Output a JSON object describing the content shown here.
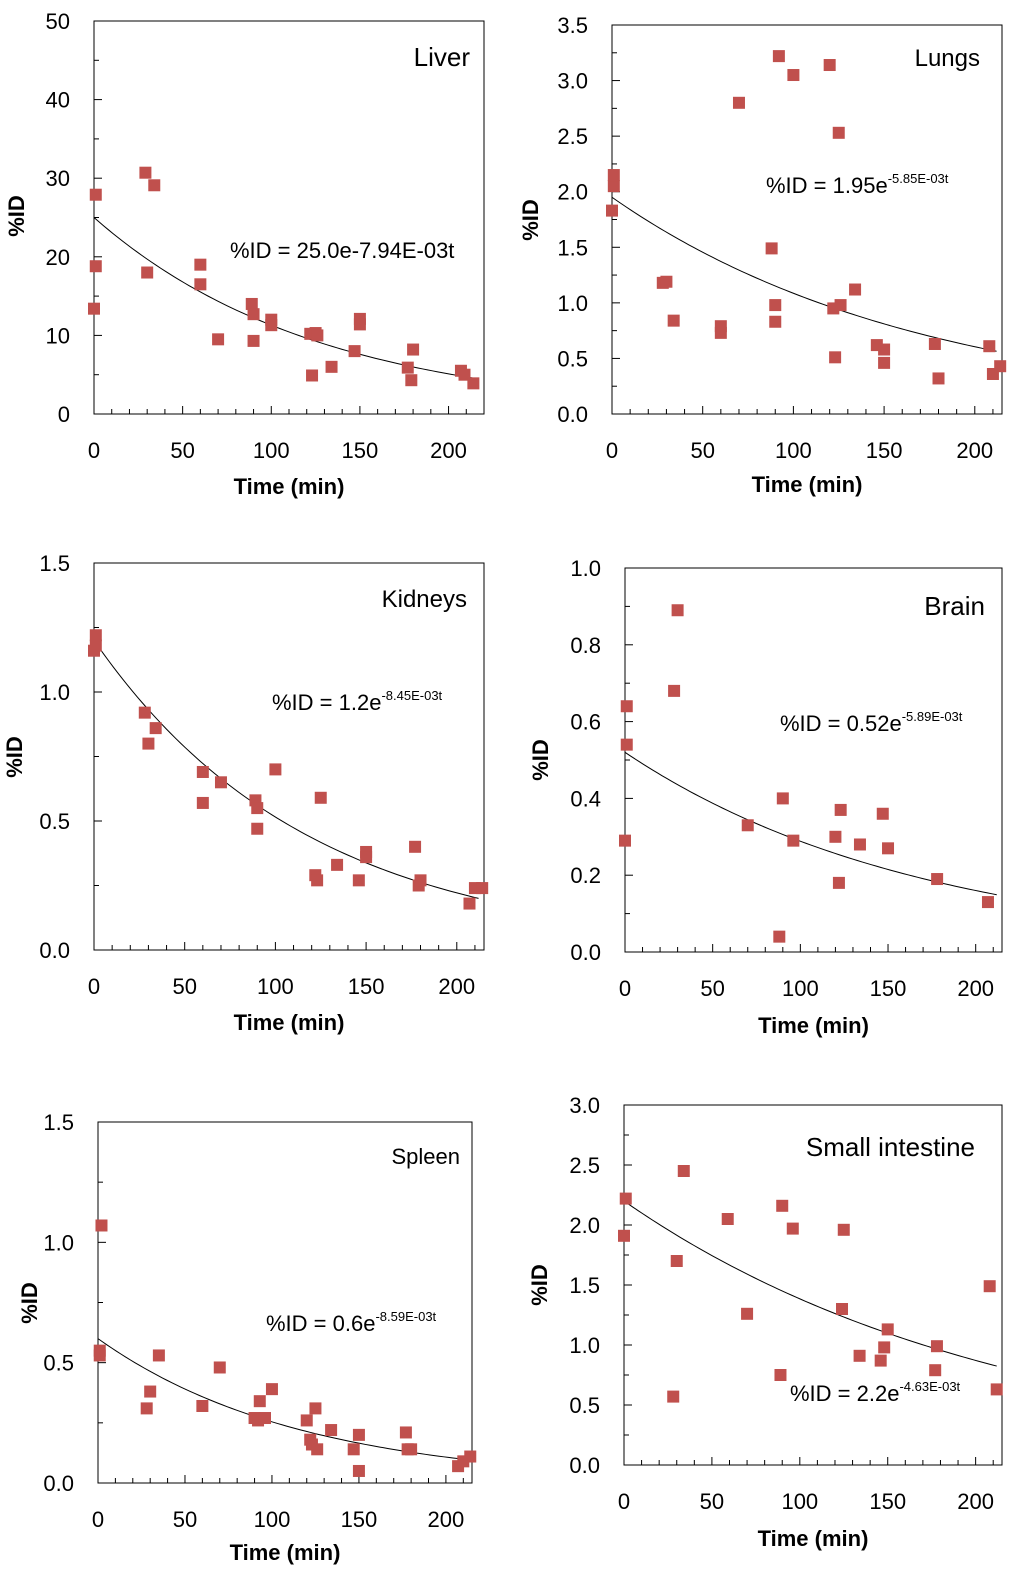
{
  "chart_data": [
    {
      "type": "scatter",
      "title": "Liver",
      "xlabel": "Time (min)",
      "ylabel": "%ID",
      "xlim": [
        0,
        220
      ],
      "ylim": [
        0,
        50
      ],
      "xticks": [
        "0",
        "50",
        "100",
        "150",
        "200"
      ],
      "yticks": [
        "0",
        "10",
        "20",
        "30",
        "40",
        "50"
      ],
      "equation": {
        "prefix": "%ID = 25.0e-7.94E-03t",
        "exponent": ""
      },
      "fit": {
        "a": 25.0,
        "k": 0.00794,
        "x_end": 215
      },
      "points": {
        "x": [
          0,
          1,
          1,
          29,
          30,
          34,
          60,
          60,
          70,
          89,
          90,
          90,
          100,
          100,
          122,
          123,
          125,
          126,
          134,
          147,
          150,
          150,
          177,
          179,
          180,
          207,
          209,
          214
        ],
        "y": [
          13.4,
          18.8,
          27.9,
          30.7,
          18.0,
          29.1,
          19.0,
          16.5,
          9.5,
          14.0,
          12.7,
          9.3,
          11.3,
          12.0,
          10.2,
          4.9,
          10.3,
          10.0,
          6.0,
          8.0,
          12.1,
          11.4,
          5.9,
          4.3,
          8.2,
          5.5,
          5.0,
          3.9
        ]
      }
    },
    {
      "type": "scatter",
      "title": "Lungs",
      "xlabel": "Time (min)",
      "ylabel": "%ID",
      "xlim": [
        0,
        215
      ],
      "ylim": [
        0,
        3.5
      ],
      "xticks": [
        "0",
        "50",
        "100",
        "150",
        "200"
      ],
      "yticks": [
        "0.0",
        "0.5",
        "1.0",
        "1.5",
        "2.0",
        "2.5",
        "3.0",
        "3.5"
      ],
      "equation": {
        "prefix": "%ID = 1.95e",
        "exponent": "-5.85E-03t"
      },
      "fit": {
        "a": 1.95,
        "k": 0.00585,
        "x_end": 212
      },
      "points": {
        "x": [
          0,
          1,
          1,
          28,
          30,
          34,
          60,
          60,
          70,
          88,
          90,
          90,
          92,
          100,
          120,
          122,
          123,
          125,
          126,
          134,
          146,
          150,
          150,
          178,
          180,
          208,
          210,
          214
        ],
        "y": [
          1.83,
          2.05,
          2.15,
          1.18,
          1.19,
          0.84,
          0.79,
          0.73,
          2.8,
          1.49,
          0.83,
          0.98,
          3.22,
          3.05,
          3.14,
          0.95,
          0.51,
          2.53,
          0.98,
          1.12,
          0.62,
          0.46,
          0.58,
          0.63,
          0.32,
          0.61,
          0.36,
          0.43
        ]
      }
    },
    {
      "type": "scatter",
      "title": "Kidneys",
      "xlabel": "Time (min)",
      "ylabel": "%ID",
      "xlim": [
        0,
        215
      ],
      "ylim": [
        0,
        1.5
      ],
      "xticks": [
        "0",
        "50",
        "100",
        "150",
        "200"
      ],
      "yticks": [
        "0.0",
        "0.5",
        "1.0",
        "1.5"
      ],
      "equation": {
        "prefix": "%ID = 1.2e",
        "exponent": "-8.45E-03t"
      },
      "fit": {
        "a": 1.2,
        "k": 0.00845,
        "x_end": 212
      },
      "points": {
        "x": [
          0,
          1,
          1,
          28,
          30,
          34,
          60,
          60,
          70,
          89,
          90,
          90,
          100,
          122,
          123,
          125,
          134,
          146,
          150,
          150,
          177,
          179,
          180,
          207,
          210,
          214
        ],
        "y": [
          1.16,
          1.18,
          1.22,
          0.92,
          0.8,
          0.86,
          0.57,
          0.69,
          0.65,
          0.58,
          0.55,
          0.47,
          0.7,
          0.29,
          0.27,
          0.59,
          0.33,
          0.27,
          0.38,
          0.36,
          0.4,
          0.25,
          0.27,
          0.18,
          0.24,
          0.24
        ]
      }
    },
    {
      "type": "scatter",
      "title": "Brain",
      "xlabel": "Time (min)",
      "ylabel": "%ID",
      "xlim": [
        0,
        215
      ],
      "ylim": [
        0,
        1.0
      ],
      "xticks": [
        "0",
        "50",
        "100",
        "150",
        "200"
      ],
      "yticks": [
        "0.0",
        "0.2",
        "0.4",
        "0.6",
        "0.8",
        "1.0"
      ],
      "equation": {
        "prefix": "%ID = 0.52e",
        "exponent": "-5.89E-03t"
      },
      "fit": {
        "a": 0.52,
        "k": 0.00589,
        "x_end": 212
      },
      "points": {
        "x": [
          0,
          1,
          1,
          28,
          30,
          70,
          88,
          90,
          96,
          120,
          122,
          123,
          134,
          147,
          150,
          178,
          207
        ],
        "y": [
          0.29,
          0.54,
          0.64,
          0.68,
          0.89,
          0.33,
          0.04,
          0.4,
          0.29,
          0.3,
          0.18,
          0.37,
          0.28,
          0.36,
          0.27,
          0.19,
          0.13
        ]
      }
    },
    {
      "type": "scatter",
      "title": "Spleen",
      "xlabel": "Time (min)",
      "ylabel": "%ID",
      "xlim": [
        0,
        215
      ],
      "ylim": [
        0,
        1.5
      ],
      "xticks": [
        "0",
        "50",
        "100",
        "150",
        "200"
      ],
      "yticks": [
        "0.0",
        "0.5",
        "1.0",
        "1.5"
      ],
      "equation": {
        "prefix": "%ID = 0.6e",
        "exponent": "-8.59E-03t"
      },
      "fit": {
        "a": 0.6,
        "k": 0.00859,
        "x_end": 212
      },
      "points": {
        "x": [
          1,
          1,
          2,
          28,
          30,
          35,
          60,
          70,
          90,
          92,
          93,
          96,
          100,
          120,
          122,
          123,
          125,
          126,
          134,
          147,
          150,
          150,
          177,
          178,
          180,
          207,
          210,
          214
        ],
        "y": [
          0.53,
          0.55,
          1.07,
          0.31,
          0.38,
          0.53,
          0.32,
          0.48,
          0.27,
          0.26,
          0.34,
          0.27,
          0.39,
          0.26,
          0.18,
          0.16,
          0.31,
          0.14,
          0.22,
          0.14,
          0.2,
          0.05,
          0.21,
          0.14,
          0.14,
          0.07,
          0.09,
          0.11
        ]
      }
    },
    {
      "type": "scatter",
      "title": "Small intestine",
      "xlabel": "Time (min)",
      "ylabel": "%ID",
      "xlim": [
        0,
        215
      ],
      "ylim": [
        0,
        3.0
      ],
      "xticks": [
        "0",
        "50",
        "100",
        "150",
        "200"
      ],
      "yticks": [
        "0.0",
        "0.5",
        "1.0",
        "1.5",
        "2.0",
        "2.5",
        "3.0"
      ],
      "equation": {
        "prefix": "%ID = 2.2e",
        "exponent": "-4.63E-03t"
      },
      "fit": {
        "a": 2.2,
        "k": 0.00463,
        "x_end": 212
      },
      "points": {
        "x": [
          0,
          1,
          28,
          30,
          34,
          59,
          70,
          89,
          90,
          96,
          124,
          125,
          134,
          146,
          148,
          150,
          177,
          178,
          208,
          212
        ],
        "y": [
          1.91,
          2.22,
          0.57,
          1.7,
          2.45,
          2.05,
          1.26,
          0.75,
          2.16,
          1.97,
          1.3,
          1.96,
          0.91,
          0.87,
          0.98,
          1.13,
          0.79,
          0.99,
          1.49,
          0.63
        ]
      }
    }
  ]
}
